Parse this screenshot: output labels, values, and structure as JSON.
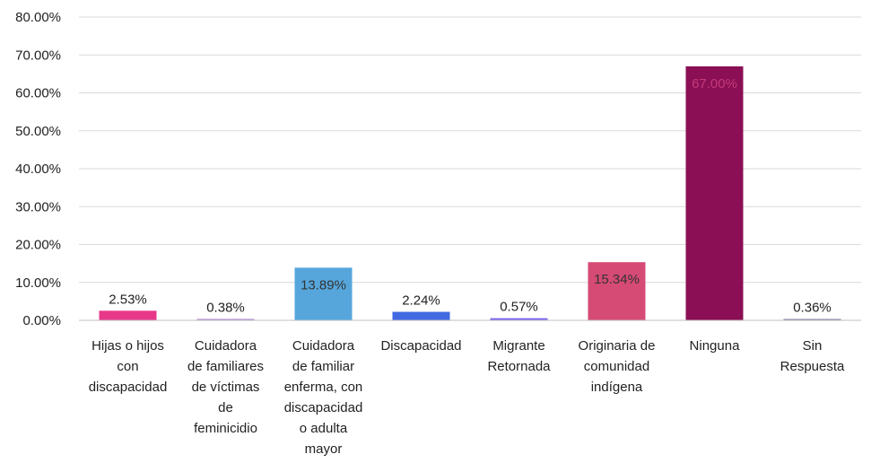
{
  "chart_data": {
    "type": "bar",
    "title": "",
    "xlabel": "",
    "ylabel": "",
    "ylim": [
      0,
      80
    ],
    "yticks": [
      0,
      10,
      20,
      30,
      40,
      50,
      60,
      70,
      80
    ],
    "ytick_labels": [
      "0.00%",
      "10.00%",
      "20.00%",
      "30.00%",
      "40.00%",
      "50.00%",
      "60.00%",
      "70.00%",
      "80.00%"
    ],
    "grid": true,
    "categories": [
      "Hijas o hijos con discapacidad",
      "Cuidadora de familiares de víctimas de feminicidio",
      "Cuidadora de familiar enferma, con discapacidad o adulta mayor",
      "Discapacidad",
      "Migrante Retornada",
      "Originaria de comunidad indígena",
      "Ninguna",
      "Sin Respuesta"
    ],
    "category_lines": [
      [
        "Hijas o hijos",
        "con",
        "discapacidad"
      ],
      [
        "Cuidadora",
        "de familiares",
        "de víctimas",
        "de",
        "feminicidio"
      ],
      [
        "Cuidadora",
        "de familiar",
        "enferma, con",
        "discapacidad",
        "o adulta",
        "mayor"
      ],
      [
        "Discapacidad"
      ],
      [
        "Migrante",
        "Retornada"
      ],
      [
        "Originaria de",
        "comunidad",
        "indígena"
      ],
      [
        "Ninguna"
      ],
      [
        "Sin",
        "Respuesta"
      ]
    ],
    "values": [
      2.53,
      0.38,
      13.89,
      2.24,
      0.57,
      15.34,
      67.0,
      0.36
    ],
    "value_labels": [
      "2.53%",
      "0.38%",
      "13.89%",
      "2.24%",
      "0.57%",
      "15.34%",
      "67.00%",
      "0.36%"
    ],
    "colors": [
      "#e8388a",
      "#b48fd1",
      "#56a6dc",
      "#4169e1",
      "#7b68ee",
      "#d64a76",
      "#8b0f54",
      "#8a7fa8"
    ],
    "label_colors": [
      "#222222",
      "#222222",
      "#333333",
      "#222222",
      "#222222",
      "#333333",
      "#c43a7a",
      "#222222"
    ]
  }
}
